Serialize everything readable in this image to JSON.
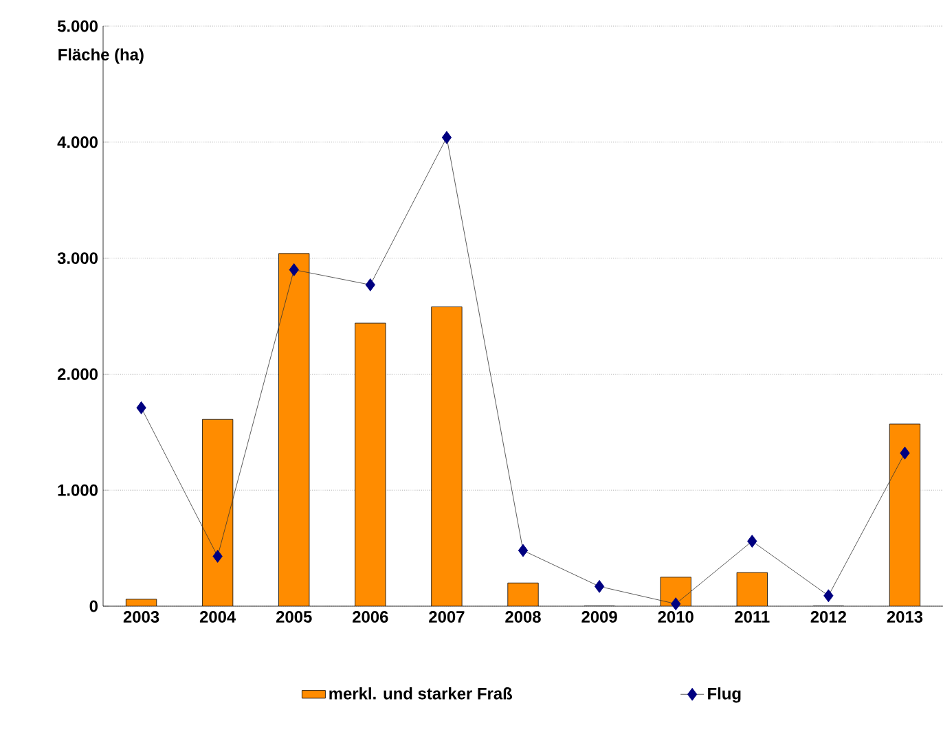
{
  "chart_data": {
    "type": "bar",
    "ylabel": "Fläche (ha)",
    "categories": [
      "2003",
      "2004",
      "2005",
      "2006",
      "2007",
      "2008",
      "2009",
      "2010",
      "2011",
      "2012",
      "2013"
    ],
    "series": [
      {
        "name": "merkl. und starker Fraß",
        "color": "#ff8c00",
        "values": [
          60,
          1610,
          3040,
          2440,
          2580,
          200,
          0,
          250,
          290,
          0,
          1570
        ]
      },
      {
        "type": "line",
        "name": "Flug",
        "color": "#000080",
        "values": [
          1710,
          430,
          2900,
          2770,
          4040,
          480,
          170,
          20,
          560,
          90,
          1320
        ]
      }
    ],
    "ylim": [
      0,
      5000
    ],
    "yticks": [
      {
        "value": 0,
        "label": "0"
      },
      {
        "value": 1000,
        "label": "1.000"
      },
      {
        "value": 2000,
        "label": "2.000"
      },
      {
        "value": 3000,
        "label": "3.000"
      },
      {
        "value": 4000,
        "label": "4.000"
      },
      {
        "value": 5000,
        "label": "5.000"
      }
    ],
    "grid": "y",
    "legend": "bottom",
    "marker": "diamond",
    "line_style": "solid"
  }
}
